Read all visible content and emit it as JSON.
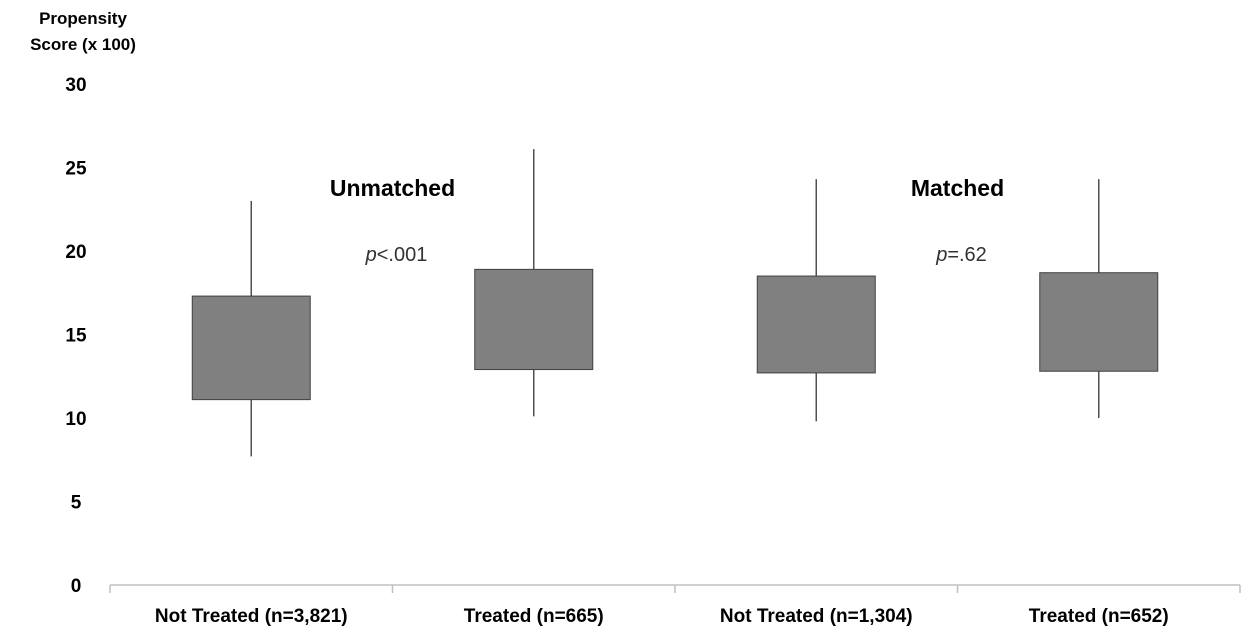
{
  "chart_data": {
    "type": "boxplot",
    "ylabel_lines": [
      "Propensity",
      "Score (x 100)"
    ],
    "ylim": [
      0,
      30
    ],
    "yticks": [
      "0",
      "5",
      "10",
      "15",
      "20",
      "25",
      "30"
    ],
    "grid": false,
    "categories": [
      "Not Treated (n=3,821)",
      "Treated (n=665)",
      "Not Treated (n=1,304)",
      "Treated (n=652)"
    ],
    "boxes": [
      {
        "category": "Not Treated (n=3,821)",
        "min": 7.7,
        "q1": 11.1,
        "q3": 17.3,
        "max": 23.0
      },
      {
        "category": "Treated (n=665)",
        "min": 10.1,
        "q1": 12.9,
        "q3": 18.9,
        "max": 26.1
      },
      {
        "category": "Not Treated (n=1,304)",
        "min": 9.8,
        "q1": 12.7,
        "q3": 18.5,
        "max": 24.3
      },
      {
        "category": "Treated (n=652)",
        "min": 10.0,
        "q1": 12.8,
        "q3": 18.7,
        "max": 24.3
      }
    ],
    "annotations": [
      {
        "label": "Unmatched",
        "p_prefix": "p",
        "p_rest": "<.001"
      },
      {
        "label": "Matched",
        "p_prefix": "p",
        "p_rest": "=.62"
      }
    ],
    "colors": {
      "box": "#808080",
      "box_edge": "#404040",
      "whisker": "#505050",
      "axis": "#c0c0c0"
    }
  }
}
